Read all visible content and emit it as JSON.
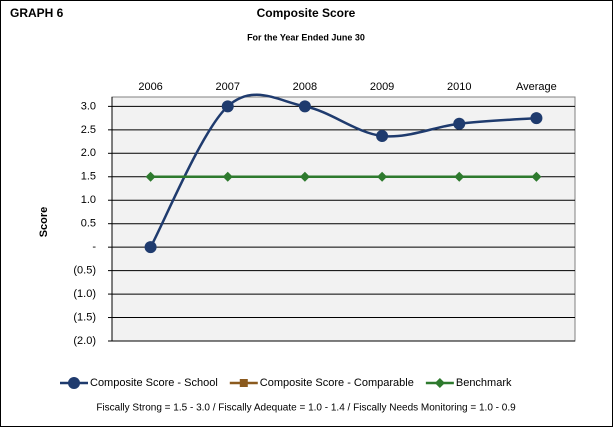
{
  "chart_data": {
    "type": "line",
    "label": "GRAPH 6",
    "title": "Composite Score",
    "subtitle": "For the Year Ended June 30",
    "ylabel": "Score",
    "categories": [
      "2006",
      "2007",
      "2008",
      "2009",
      "2010",
      "Average"
    ],
    "series": [
      {
        "name": "Composite Score - School",
        "color": "#1f3b6e",
        "marker": "circle",
        "values": [
          0,
          3.0,
          3.0,
          2.37,
          2.63,
          2.75
        ]
      },
      {
        "name": "Composite Score - Comparable",
        "color": "#8b5a1e",
        "marker": "square",
        "values": [
          null,
          null,
          null,
          null,
          null,
          null
        ]
      },
      {
        "name": "Benchmark",
        "color": "#2e7a2e",
        "marker": "diamond",
        "values": [
          1.5,
          1.5,
          1.5,
          1.5,
          1.5,
          1.5
        ]
      }
    ],
    "ylim": [
      -2.0,
      3.2
    ],
    "yticks": [
      {
        "value": 3.0,
        "label": "3.0"
      },
      {
        "value": 2.5,
        "label": "2.5"
      },
      {
        "value": 2.0,
        "label": "2.0"
      },
      {
        "value": 1.5,
        "label": "1.5"
      },
      {
        "value": 1.0,
        "label": "1.0"
      },
      {
        "value": 0.5,
        "label": "0.5"
      },
      {
        "value": 0,
        "label": "-"
      },
      {
        "value": -0.5,
        "label": "(0.5)"
      },
      {
        "value": -1.0,
        "label": "(1.0)"
      },
      {
        "value": -1.5,
        "label": "(1.5)"
      },
      {
        "value": -2.0,
        "label": "(2.0)"
      }
    ],
    "grid": true,
    "legend": "bottom",
    "note": "Fiscally Strong = 1.5 - 3.0 / Fiscally Adequate = 1.0 - 1.4 / Fiscally Needs Monitoring = 1.0 - 0.9"
  }
}
